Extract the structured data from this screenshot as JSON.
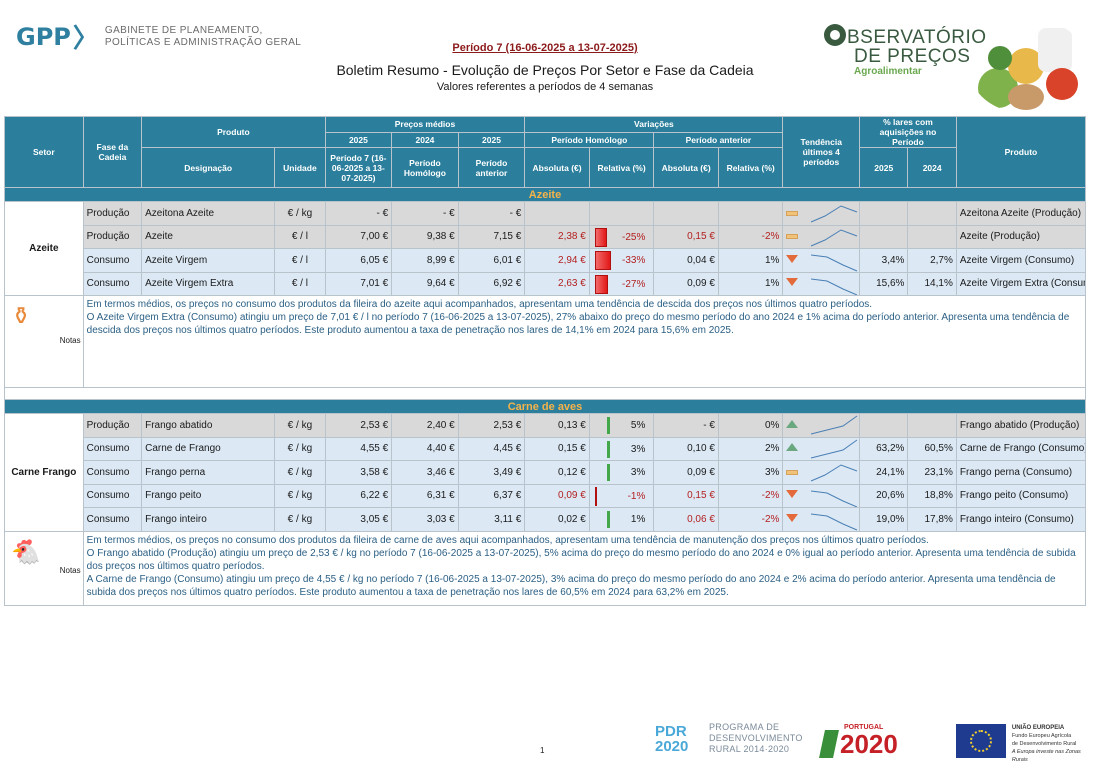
{
  "header": {
    "gpp_logo": "GPP",
    "gpp_sub1": "GABINETE DE PLANEAMENTO,",
    "gpp_sub2": "POLÍTICAS E ADMINISTRAÇÃO GERAL",
    "periodo": "Período 7 (16-06-2025 a 13-07-2025)",
    "title": "Boletim Resumo - Evolução de Preços Por Setor e Fase da Cadeia",
    "subtitle": "Valores referentes a períodos de 4 semanas",
    "obs_line1": "BSERVATÓRIO",
    "obs_line2": "DE PREÇOS",
    "obs_line3": "Agroalimentar"
  },
  "table_headers": {
    "setor": "Setor",
    "fase": "Fase da Cadeia",
    "produto": "Produto",
    "designacao": "Designação",
    "unidade": "Unidade",
    "precos_medios": "Preços médios",
    "y2025": "2025",
    "y2024": "2024",
    "y2025b": "2025",
    "periodo7": "Período 7 (16-06-2025 a 13-07-2025)",
    "periodo_homologo": "Período Homólogo",
    "periodo_anterior": "Período anterior",
    "variacoes": "Variações",
    "var_homologo": "Período Homólogo",
    "var_anterior": "Período anterior",
    "absoluta": "Absoluta (€)",
    "relativa": "Relativa (%)",
    "tendencia": "Tendência últimos 4 períodos",
    "lares": "% lares com aquisições no Período",
    "lares_2025": "2025",
    "lares_2024": "2024",
    "produto_right": "Produto"
  },
  "sectors": [
    {
      "name": "Azeite",
      "sector_label": "Azeite",
      "rows": [
        {
          "fase": "Produção",
          "designacao": "Azeitona Azeite",
          "unidade": "€ / kg",
          "p2025": "-  €",
          "p2024": "-  €",
          "pant": "-  €",
          "abs_h": "",
          "rel_h": "",
          "abs_a": "",
          "rel_a": "",
          "trend": "flat",
          "lares25": "",
          "lares24": "",
          "produto": "Azeitona Azeite (Produção)",
          "style": "grey"
        },
        {
          "fase": "Produção",
          "designacao": "Azeite",
          "unidade": "€ / l",
          "p2025": "7,00 €",
          "p2024": "9,38 €",
          "pant": "7,15 €",
          "abs_h": "2,38 €",
          "rel_h": "-25%",
          "abs_a": "0,15 €",
          "rel_a": "-2%",
          "trend": "flat",
          "lares25": "",
          "lares24": "",
          "produto": "Azeite (Produção)",
          "style": "grey"
        },
        {
          "fase": "Consumo",
          "designacao": "Azeite Virgem",
          "unidade": "€ / l",
          "p2025": "6,05 €",
          "p2024": "8,99 €",
          "pant": "6,01 €",
          "abs_h": "2,94 €",
          "rel_h": "-33%",
          "abs_a": "0,04 €",
          "rel_a": "1%",
          "trend": "down",
          "lares25": "3,4%",
          "lares24": "2,7%",
          "produto": "Azeite Virgem (Consumo)",
          "style": "blue"
        },
        {
          "fase": "Consumo",
          "designacao": "Azeite Virgem Extra",
          "unidade": "€ / l",
          "p2025": "7,01 €",
          "p2024": "9,64 €",
          "pant": "6,92 €",
          "abs_h": "2,63 €",
          "rel_h": "-27%",
          "abs_a": "0,09 €",
          "rel_a": "1%",
          "trend": "down",
          "lares25": "15,6%",
          "lares24": "14,1%",
          "produto": "Azeite Virgem Extra (Consumo)",
          "style": "blue"
        }
      ],
      "notes_label": "Notas",
      "notes": [
        "Em termos médios, os preços no consumo dos produtos da fileira do azeite aqui acompanhados, apresentam uma tendência de descida dos preços nos últimos quatro períodos.",
        "O Azeite Virgem Extra (Consumo) atingiu um preço de 7,01 € / l no período 7 (16-06-2025 a 13-07-2025), 27% abaixo do preço do mesmo período do ano 2024 e 1% acima do período anterior. Apresenta uma tendência de descida dos preços nos últimos quatro períodos. Este produto aumentou a taxa de penetração nos lares de 14,1% em 2024 para 15,6% em 2025."
      ]
    },
    {
      "name": "Carne de aves",
      "sector_label": "Carne Frango",
      "rows": [
        {
          "fase": "Produção",
          "designacao": "Frango abatido",
          "unidade": "€ / kg",
          "p2025": "2,53 €",
          "p2024": "2,40 €",
          "pant": "2,53 €",
          "abs_h": "0,13 €",
          "rel_h": "5%",
          "abs_a": "-  €",
          "rel_a": "0%",
          "trend": "up",
          "lares25": "",
          "lares24": "",
          "produto": "Frango abatido (Produção)",
          "style": "grey"
        },
        {
          "fase": "Consumo",
          "designacao": "Carne de Frango",
          "unidade": "€ / kg",
          "p2025": "4,55 €",
          "p2024": "4,40 €",
          "pant": "4,45 €",
          "abs_h": "0,15 €",
          "rel_h": "3%",
          "abs_a": "0,10 €",
          "rel_a": "2%",
          "trend": "up",
          "lares25": "63,2%",
          "lares24": "60,5%",
          "produto": "Carne de Frango (Consumo)",
          "style": "blue"
        },
        {
          "fase": "Consumo",
          "designacao": "Frango perna",
          "unidade": "€ / kg",
          "p2025": "3,58 €",
          "p2024": "3,46 €",
          "pant": "3,49 €",
          "abs_h": "0,12 €",
          "rel_h": "3%",
          "abs_a": "0,09 €",
          "rel_a": "3%",
          "trend": "flat",
          "lares25": "24,1%",
          "lares24": "23,1%",
          "produto": "Frango perna (Consumo)",
          "style": "blue"
        },
        {
          "fase": "Consumo",
          "designacao": "Frango peito",
          "unidade": "€ / kg",
          "p2025": "6,22 €",
          "p2024": "6,31 €",
          "pant": "6,37 €",
          "abs_h": "0,09 €",
          "rel_h": "-1%",
          "abs_a": "0,15 €",
          "rel_a": "-2%",
          "trend": "down",
          "lares25": "20,6%",
          "lares24": "18,8%",
          "produto": "Frango peito (Consumo)",
          "style": "blue"
        },
        {
          "fase": "Consumo",
          "designacao": "Frango inteiro",
          "unidade": "€ / kg",
          "p2025": "3,05 €",
          "p2024": "3,03 €",
          "pant": "3,11 €",
          "abs_h": "0,02 €",
          "rel_h": "1%",
          "abs_a": "0,06 €",
          "rel_a": "-2%",
          "trend": "down",
          "lares25": "19,0%",
          "lares24": "17,8%",
          "produto": "Frango inteiro (Consumo)",
          "style": "blue"
        }
      ],
      "notes_label": "Notas",
      "notes": [
        "Em termos médios, os preços no consumo dos produtos da fileira de carne de aves aqui acompanhados, apresentam uma tendência de  manutenção dos preços nos últimos quatro períodos.",
        "O Frango abatido (Produção) atingiu um preço de 2,53 € / kg no período 7 (16-06-2025 a 13-07-2025), 5% acima do preço do mesmo período do ano 2024 e 0% igual ao período anterior. Apresenta uma tendência de subida dos preços nos últimos quatro períodos.",
        "A Carne de Frango (Consumo) atingiu um preço de 4,55 € / kg no período 7 (16-06-2025 a 13-07-2025), 3% acima do preço do mesmo período do ano 2024 e 2% acima do período anterior. Apresenta uma tendência de subida dos preços nos últimos quatro períodos. Este produto aumentou a taxa de penetração nos lares de 60,5% em 2024 para 63,2% em 2025."
      ]
    }
  ],
  "footer": {
    "page": "1",
    "pdr_logo": "PDR 2020",
    "pdr_line1": "PROGRAMA DE",
    "pdr_line2": "DESENVOLVIMENTO",
    "pdr_line3": "RURAL 2014·2020",
    "pt_label": "PORTUGAL",
    "pt_num": "2020",
    "eu_line1": "UNIÃO EUROPEIA",
    "eu_line2": "Fundo Europeu Agrícola",
    "eu_line3": "de Desenvolvimento Rural",
    "eu_line4": "A Europa investe nas Zonas Rurais"
  },
  "colors": {
    "header_bg": "#2b7f9c",
    "sector_text": "#f5b34a",
    "negative": "#b32020",
    "notes_text": "#2a5f84",
    "grey_row": "#d9d9d9",
    "blue_row": "#dce9f5"
  }
}
